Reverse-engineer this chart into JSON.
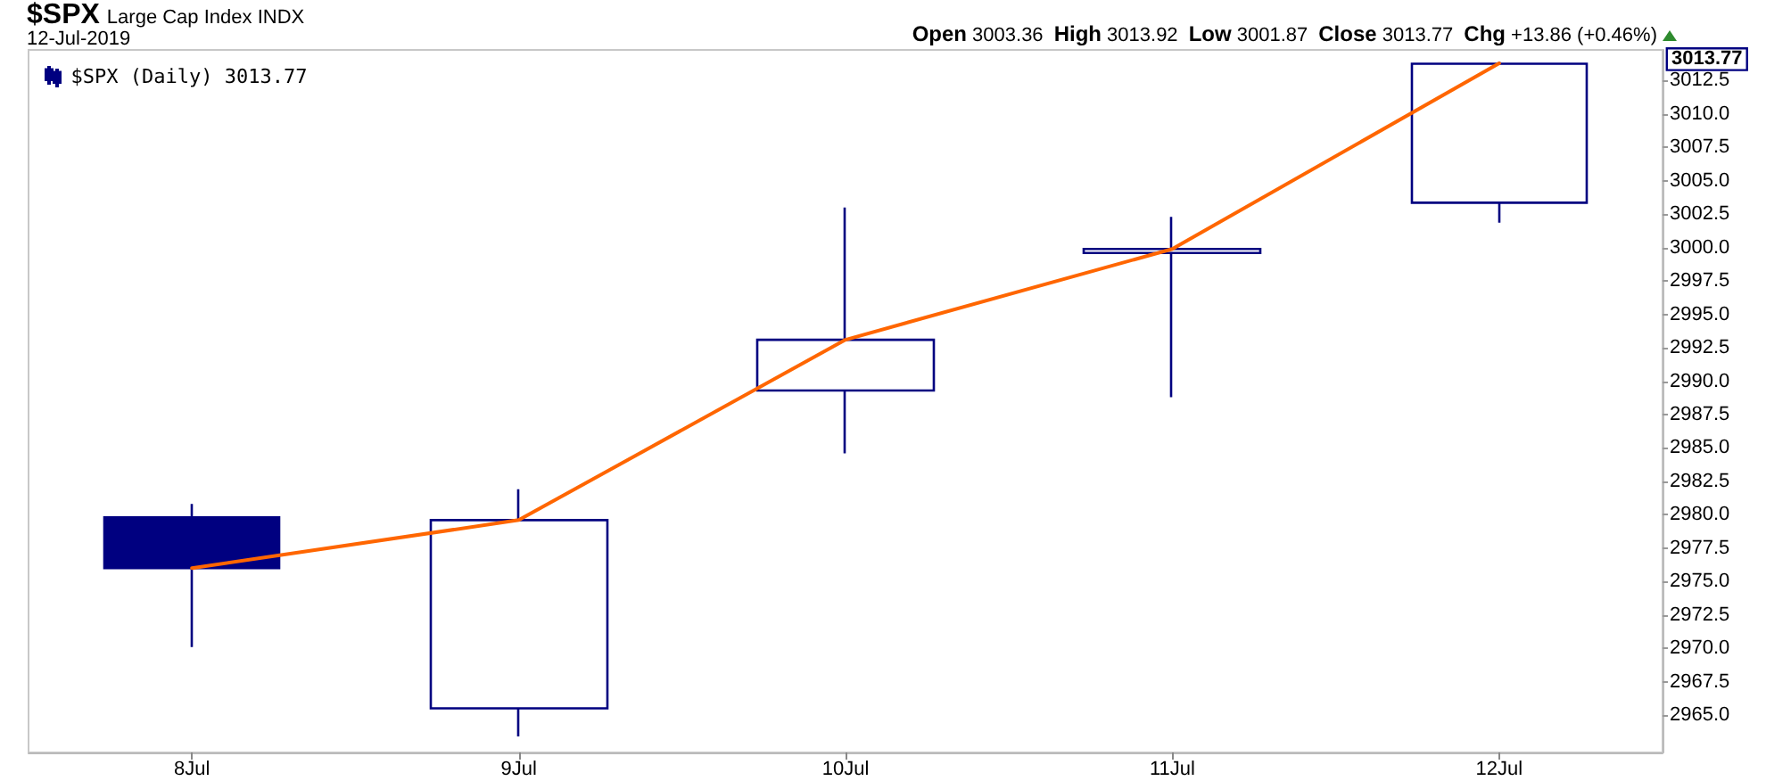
{
  "chart_data": {
    "type": "candlestick",
    "title": "$SPX",
    "subtitle": "Large Cap Index INDX",
    "annotations": [
      "12-Jul-2019",
      "Open 3003.36",
      "High 3013.92",
      "Low 3001.87",
      "Close 3013.77",
      "Chg +13.86 (+0.46%)",
      "3013.77"
    ],
    "categories": [
      "8Jul",
      "9Jul",
      "10Jul",
      "11Jul",
      "12Jul"
    ],
    "series": [
      {
        "name": "$SPX (Daily) 3013.77",
        "color": "#000080",
        "ohlc": [
          [
            2979.8,
            2980.8,
            2970.1,
            2976.0
          ],
          [
            2965.5,
            2981.9,
            2963.4,
            2979.6
          ],
          [
            2989.3,
            3003.0,
            2984.6,
            2993.1
          ],
          [
            2999.6,
            3002.3,
            2988.8,
            2999.9
          ],
          [
            3003.36,
            3013.92,
            3001.87,
            3013.77
          ]
        ]
      },
      {
        "type": "line",
        "color": "#ff6600",
        "values": [
          2976.0,
          2979.6,
          2993.1,
          2999.9,
          3013.8
        ]
      }
    ],
    "ylim": [
      2962.2,
      3014.8
    ],
    "yticks": [
      {
        "value": 2965,
        "label": "2965.0"
      },
      2967.5,
      {
        "value": 2970,
        "label": "2970.0"
      },
      2972.5,
      {
        "value": 2975,
        "label": "2975.0"
      },
      2977.5,
      {
        "value": 2980,
        "label": "2980.0"
      },
      2982.5,
      {
        "value": 2985,
        "label": "2985.0"
      },
      2987.5,
      {
        "value": 2990,
        "label": "2990.0"
      },
      2992.5,
      {
        "value": 2995,
        "label": "2995.0"
      },
      2997.5,
      {
        "value": 3000,
        "label": "3000.0"
      },
      3002.5,
      {
        "value": 3005,
        "label": "3005.0"
      },
      3007.5,
      {
        "value": 3010,
        "label": "3010.0"
      },
      3012.5
    ],
    "grid": false,
    "legend": "top left",
    "marker": "none",
    "line_style": "solid"
  }
}
